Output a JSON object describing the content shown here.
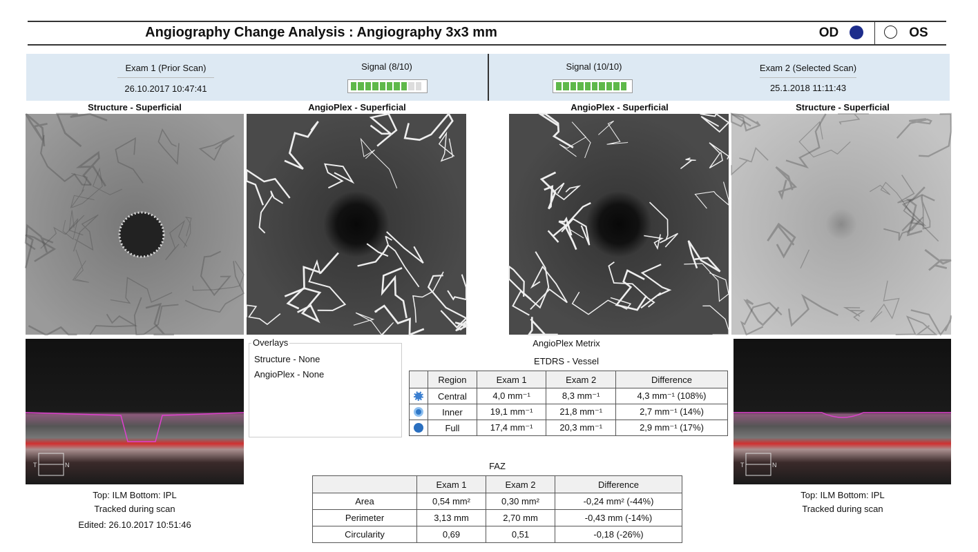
{
  "header": {
    "title": "Angiography Change Analysis : Angiography 3x3 mm",
    "eye_od": "OD",
    "eye_os": "OS"
  },
  "exam1": {
    "title": "Exam 1 (Prior Scan)",
    "datetime": "26.10.2017 10:47:41",
    "signal": {
      "label": "Signal (8/10)",
      "value": 8,
      "max": 10
    },
    "notes": [
      "Top: ILM  Bottom: IPL",
      "Tracked during scan",
      "Edited: 26.10.2017 10:51:46"
    ]
  },
  "exam2": {
    "title": "Exam 2 (Selected Scan)",
    "datetime": "25.1.2018 11:11:43",
    "signal": {
      "label": "Signal (10/10)",
      "value": 10,
      "max": 10
    },
    "notes": [
      "Top: ILM  Bottom: IPL",
      "Tracked during scan"
    ]
  },
  "images": {
    "titles": [
      "Structure - Superficial",
      "AngioPlex - Superficial",
      "AngioPlex - Superficial",
      "Structure - Superficial"
    ],
    "orientation": [
      "T",
      "N"
    ]
  },
  "overlays": {
    "title": "Overlays",
    "items": [
      "Structure - None",
      "AngioPlex - None"
    ]
  },
  "metrix": {
    "title": "AngioPlex Metrix",
    "subtitle": "ETDRS - Vessel",
    "header": [
      "Region",
      "Exam 1",
      "Exam 2",
      "Difference"
    ],
    "rows": [
      [
        "Central",
        "4,0 mm⁻¹",
        "8,3 mm⁻¹",
        "4,3 mm⁻¹ (108%)"
      ],
      [
        "Inner",
        "19,1 mm⁻¹",
        "21,8 mm⁻¹",
        "2,7 mm⁻¹ (14%)"
      ],
      [
        "Full",
        "17,4 mm⁻¹",
        "20,3 mm⁻¹",
        "2,9 mm⁻¹ (17%)"
      ]
    ]
  },
  "faz": {
    "title": "FAZ",
    "header": [
      "Exam 1",
      "Exam 2",
      "Difference"
    ],
    "rows": [
      [
        "Area",
        "0,54 mm²",
        "0,30 mm²",
        "-0,24 mm² (-44%)"
      ],
      [
        "Perimeter",
        "3,13 mm",
        "2,70 mm",
        "-0,43 mm (-14%)"
      ],
      [
        "Circularity",
        "0,69",
        "0,51",
        "-0,18 (-26%)"
      ]
    ]
  }
}
